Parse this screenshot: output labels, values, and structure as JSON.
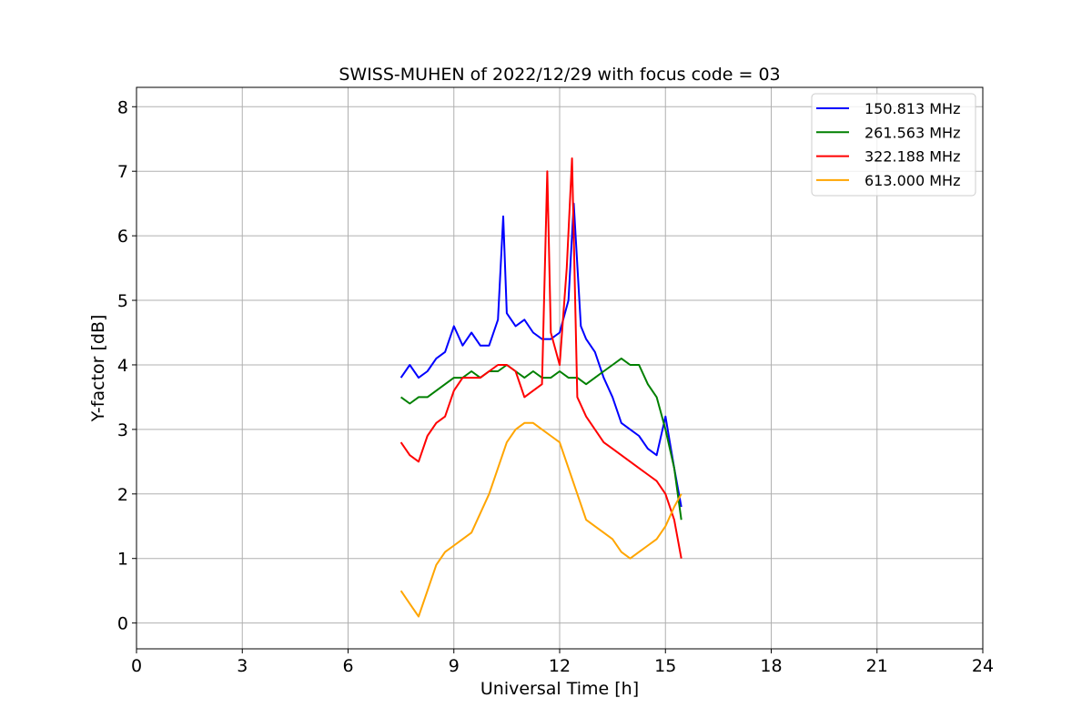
{
  "chart_data": {
    "type": "line",
    "title": "SWISS-MUHEN of 2022/12/29 with focus code = 03",
    "xlabel": "Universal Time [h]",
    "ylabel": "Y-factor [dB]",
    "xlim": [
      0,
      24
    ],
    "ylim": [
      -0.4,
      8.3
    ],
    "xticks": [
      0,
      3,
      6,
      9,
      12,
      15,
      18,
      21,
      24
    ],
    "yticks": [
      0,
      1,
      2,
      3,
      4,
      5,
      6,
      7,
      8
    ],
    "grid": true,
    "legend_position": "top-right",
    "series": [
      {
        "name": "150.813 MHz",
        "color": "#0000ff",
        "x": [
          7.5,
          7.75,
          8.0,
          8.25,
          8.5,
          8.75,
          9.0,
          9.25,
          9.5,
          9.75,
          10.0,
          10.25,
          10.4,
          10.5,
          10.75,
          11.0,
          11.25,
          11.5,
          11.75,
          12.0,
          12.25,
          12.4,
          12.6,
          12.75,
          13.0,
          13.25,
          13.5,
          13.75,
          14.0,
          14.25,
          14.5,
          14.75,
          15.0,
          15.25,
          15.45
        ],
        "y": [
          3.8,
          4.0,
          3.8,
          3.9,
          4.1,
          4.2,
          4.6,
          4.3,
          4.5,
          4.3,
          4.3,
          4.7,
          6.3,
          4.8,
          4.6,
          4.7,
          4.5,
          4.4,
          4.4,
          4.5,
          5.0,
          6.5,
          4.6,
          4.4,
          4.2,
          3.8,
          3.5,
          3.1,
          3.0,
          2.9,
          2.7,
          2.6,
          3.2,
          2.4,
          1.8
        ]
      },
      {
        "name": "261.563 MHz",
        "color": "#008000",
        "x": [
          7.5,
          7.75,
          8.0,
          8.25,
          8.5,
          8.75,
          9.0,
          9.25,
          9.5,
          9.75,
          10.0,
          10.25,
          10.5,
          10.75,
          11.0,
          11.25,
          11.5,
          11.75,
          12.0,
          12.25,
          12.5,
          12.75,
          13.0,
          13.25,
          13.5,
          13.75,
          14.0,
          14.25,
          14.5,
          14.75,
          15.0,
          15.25,
          15.45
        ],
        "y": [
          3.5,
          3.4,
          3.5,
          3.5,
          3.6,
          3.7,
          3.8,
          3.8,
          3.9,
          3.8,
          3.9,
          3.9,
          4.0,
          3.9,
          3.8,
          3.9,
          3.8,
          3.8,
          3.9,
          3.8,
          3.8,
          3.7,
          3.8,
          3.9,
          4.0,
          4.1,
          4.0,
          4.0,
          3.7,
          3.5,
          3.0,
          2.4,
          1.6
        ]
      },
      {
        "name": "322.188 MHz",
        "color": "#ff0000",
        "x": [
          7.5,
          7.75,
          8.0,
          8.25,
          8.5,
          8.75,
          9.0,
          9.25,
          9.5,
          9.75,
          10.0,
          10.25,
          10.5,
          10.75,
          11.0,
          11.25,
          11.5,
          11.65,
          11.75,
          12.0,
          12.2,
          12.35,
          12.5,
          12.75,
          13.0,
          13.25,
          13.5,
          13.75,
          14.0,
          14.25,
          14.5,
          14.75,
          15.0,
          15.25,
          15.45
        ],
        "y": [
          2.8,
          2.6,
          2.5,
          2.9,
          3.1,
          3.2,
          3.6,
          3.8,
          3.8,
          3.8,
          3.9,
          4.0,
          4.0,
          3.9,
          3.5,
          3.6,
          3.7,
          7.0,
          4.5,
          4.0,
          5.5,
          7.2,
          3.5,
          3.2,
          3.0,
          2.8,
          2.7,
          2.6,
          2.5,
          2.4,
          2.3,
          2.2,
          2.0,
          1.6,
          1.0
        ]
      },
      {
        "name": "613.000 MHz",
        "color": "#ffa500",
        "x": [
          7.5,
          7.75,
          8.0,
          8.25,
          8.5,
          8.75,
          9.0,
          9.25,
          9.5,
          9.75,
          10.0,
          10.25,
          10.5,
          10.75,
          11.0,
          11.25,
          11.5,
          11.75,
          12.0,
          12.25,
          12.5,
          12.75,
          13.0,
          13.25,
          13.5,
          13.75,
          14.0,
          14.25,
          14.5,
          14.75,
          15.0,
          15.25,
          15.45
        ],
        "y": [
          0.5,
          0.3,
          0.1,
          0.5,
          0.9,
          1.1,
          1.2,
          1.3,
          1.4,
          1.7,
          2.0,
          2.4,
          2.8,
          3.0,
          3.1,
          3.1,
          3.0,
          2.9,
          2.8,
          2.4,
          2.0,
          1.6,
          1.5,
          1.4,
          1.3,
          1.1,
          1.0,
          1.1,
          1.2,
          1.3,
          1.5,
          1.8,
          2.0
        ]
      }
    ]
  }
}
